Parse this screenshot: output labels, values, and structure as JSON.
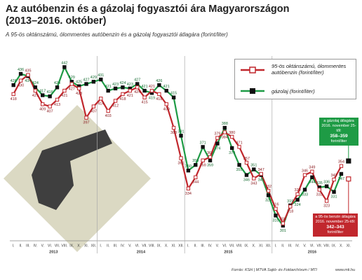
{
  "chart_data": {
    "type": "line",
    "title": [
      "Az autóbenzin és a gázolaj fogyasztói ára Magyarországon",
      "(2013–2016. október)"
    ],
    "subtitle": "A 95-ös oktánszámú, ólommentes autóbenzin és a gázolaj fogyasztói átlagára (forint/liter)",
    "categories": [
      "I.",
      "II.",
      "III.",
      "IV.",
      "V.",
      "VI.",
      "VII.",
      "VIII.",
      "IX.",
      "X.",
      "XI.",
      "XII.",
      "I.",
      "II.",
      "III.",
      "IV.",
      "V.",
      "VI.",
      "VII.",
      "VIII.",
      "IX.",
      "X.",
      "XI.",
      "XII.",
      "I.",
      "II.",
      "III.",
      "IV.",
      "V.",
      "VI.",
      "VII.",
      "VIII.",
      "IX.",
      "X.",
      "XI.",
      "XII.",
      "I.",
      "II.",
      "III.",
      "IV.",
      "V.",
      "VI.",
      "VII.",
      "VIII.",
      "IX.",
      "X.",
      "XI."
    ],
    "year_labels": [
      "2013",
      "2014",
      "2015",
      "2016"
    ],
    "series": [
      {
        "name": "95-ös oktánszámú, ólommentes autóbenzin (forint/liter)",
        "color": "#c1272d",
        "values": [
          418,
          430,
          435,
          421,
          409,
          407,
          413,
          421,
          427,
          423,
          397,
          407,
          414,
          403,
          412,
          418,
          421,
          424,
          415,
          421,
          418,
          409,
          388,
          361,
          334,
          344,
          359,
          362,
          379,
          384,
          380,
          371,
          357,
          343,
          347,
          332,
          316,
          303,
          318,
          329,
          346,
          349,
          333,
          323,
          342,
          354,
          null
        ]
      },
      {
        "name": "gázolaj (forint/liter)",
        "color": "#1e9b45",
        "values": [
          426,
          436,
          434,
          424,
          417,
          416,
          424,
          442,
          429,
          425,
          427,
          429,
          431,
          421,
          423,
          424,
          423,
          427,
          421,
          419,
          426,
          421,
          415,
          381,
          350,
          355,
          371,
          359,
          374,
          388,
          370,
          355,
          346,
          351,
          346,
          328,
          310,
          301,
          319,
          324,
          333,
          344,
          335,
          336,
          331,
          347,
          null
        ]
      }
    ],
    "annotations": [
      {
        "lines": [
          "a gázolaj átlagára",
          "2016. november 25-től:",
          "358–359",
          "forint/liter"
        ],
        "value": 358.5,
        "color": "#1e9b45"
      },
      {
        "lines": [
          "a 95-ös benzin átlagára",
          "2016. november 25-től:",
          "342–343",
          "forint/liter"
        ],
        "value": 342.5,
        "color": "#c1272d"
      }
    ],
    "ylim": [
      290,
      455
    ],
    "source": "Forrás: KSH | MTVA Sajtó- és Fotóarchívum / MTI",
    "footer": "www.mti.hu"
  }
}
